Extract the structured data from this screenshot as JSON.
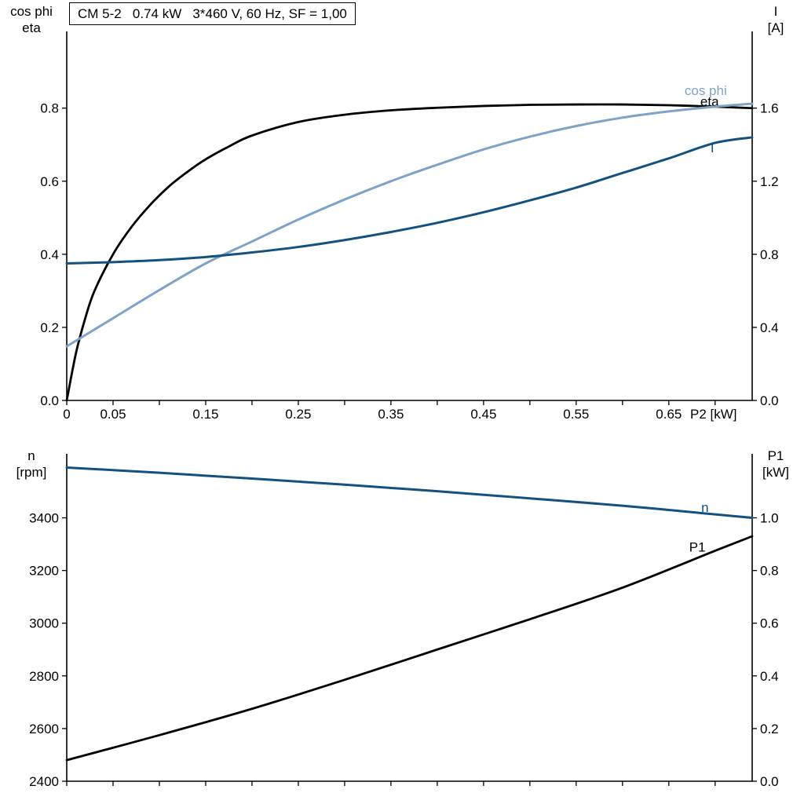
{
  "page": {
    "background": "#ffffff"
  },
  "colors": {
    "black": "#000000",
    "dark_blue": "#14517f",
    "light_blue": "#7fa3c6"
  },
  "chart_data": [
    {
      "type": "line",
      "title": "CM 5-2   0.74 kW   3*460 V, 60 Hz, SF = 1,00",
      "left_axis": {
        "title_lines": [
          "cos phi",
          "eta"
        ],
        "range": [
          0,
          1.01
        ],
        "ticks": [
          {
            "v": 0.0,
            "label": "0.0"
          },
          {
            "v": 0.2,
            "label": "0.2"
          },
          {
            "v": 0.4,
            "label": "0.4"
          },
          {
            "v": 0.6,
            "label": "0.6"
          },
          {
            "v": 0.8,
            "label": "0.8"
          }
        ]
      },
      "right_axis": {
        "title_lines": [
          "I",
          "[A]"
        ],
        "range": [
          0,
          2.02
        ],
        "ticks": [
          {
            "v": 0.0,
            "label": "0.0"
          },
          {
            "v": 0.4,
            "label": "0.4"
          },
          {
            "v": 0.8,
            "label": "0.8"
          },
          {
            "v": 1.2,
            "label": "1.2"
          },
          {
            "v": 1.6,
            "label": "1.6"
          }
        ]
      },
      "x_axis": {
        "label": "P2 [kW]",
        "range": [
          0,
          0.74
        ],
        "ticks": [
          {
            "v": 0.0,
            "label": "0"
          },
          {
            "v": 0.05,
            "label": "0.05"
          },
          {
            "v": 0.1,
            "label": ""
          },
          {
            "v": 0.15,
            "label": "0.15"
          },
          {
            "v": 0.2,
            "label": ""
          },
          {
            "v": 0.25,
            "label": "0.25"
          },
          {
            "v": 0.3,
            "label": ""
          },
          {
            "v": 0.35,
            "label": "0.35"
          },
          {
            "v": 0.4,
            "label": ""
          },
          {
            "v": 0.45,
            "label": "0.45"
          },
          {
            "v": 0.5,
            "label": ""
          },
          {
            "v": 0.55,
            "label": "0.55"
          },
          {
            "v": 0.6,
            "label": ""
          },
          {
            "v": 0.65,
            "label": "0.65"
          },
          {
            "v": 0.7,
            "label": ""
          }
        ]
      },
      "series": [
        {
          "name": "eta",
          "color": "#000000",
          "axis": "left",
          "width": 2.8,
          "label": {
            "text": "eta",
            "x": 0.684,
            "v": 0.817,
            "color": "#000000"
          },
          "points": [
            [
              0,
              0
            ],
            [
              0.01,
              0.13
            ],
            [
              0.02,
              0.225
            ],
            [
              0.03,
              0.3
            ],
            [
              0.05,
              0.4
            ],
            [
              0.07,
              0.475
            ],
            [
              0.09,
              0.535
            ],
            [
              0.11,
              0.585
            ],
            [
              0.13,
              0.625
            ],
            [
              0.15,
              0.66
            ],
            [
              0.175,
              0.695
            ],
            [
              0.2,
              0.725
            ],
            [
              0.25,
              0.762
            ],
            [
              0.3,
              0.782
            ],
            [
              0.35,
              0.794
            ],
            [
              0.4,
              0.801
            ],
            [
              0.45,
              0.806
            ],
            [
              0.5,
              0.809
            ],
            [
              0.55,
              0.81
            ],
            [
              0.6,
              0.81
            ],
            [
              0.65,
              0.808
            ],
            [
              0.7,
              0.804
            ],
            [
              0.74,
              0.8
            ]
          ]
        },
        {
          "name": "cos phi",
          "color": "#7fa3c6",
          "axis": "left",
          "width": 3,
          "label": {
            "text": "cos phi",
            "x": 0.667,
            "v": 0.847,
            "color": "#7fa3c6"
          },
          "points": [
            [
              0,
              0.148
            ],
            [
              0.05,
              0.225
            ],
            [
              0.1,
              0.302
            ],
            [
              0.15,
              0.375
            ],
            [
              0.2,
              0.435
            ],
            [
              0.25,
              0.495
            ],
            [
              0.3,
              0.55
            ],
            [
              0.35,
              0.6
            ],
            [
              0.4,
              0.645
            ],
            [
              0.45,
              0.687
            ],
            [
              0.5,
              0.722
            ],
            [
              0.55,
              0.751
            ],
            [
              0.6,
              0.774
            ],
            [
              0.65,
              0.791
            ],
            [
              0.7,
              0.804
            ],
            [
              0.74,
              0.812
            ]
          ]
        },
        {
          "name": "I",
          "color": "#14517f",
          "axis": "right",
          "width": 3,
          "label": {
            "text": "I",
            "x": 0.695,
            "v": 1.38,
            "color": "#14517f"
          },
          "points": [
            [
              0,
              0.75
            ],
            [
              0.05,
              0.757
            ],
            [
              0.1,
              0.768
            ],
            [
              0.15,
              0.785
            ],
            [
              0.2,
              0.81
            ],
            [
              0.25,
              0.84
            ],
            [
              0.3,
              0.878
            ],
            [
              0.35,
              0.922
            ],
            [
              0.4,
              0.972
            ],
            [
              0.45,
              1.03
            ],
            [
              0.5,
              1.095
            ],
            [
              0.55,
              1.165
            ],
            [
              0.6,
              1.245
            ],
            [
              0.65,
              1.325
            ],
            [
              0.7,
              1.41
            ],
            [
              0.74,
              1.44
            ]
          ]
        }
      ]
    },
    {
      "type": "line",
      "title": "",
      "left_axis": {
        "title_lines": [
          "n",
          "[rpm]"
        ],
        "range": [
          2400,
          3643
        ],
        "ticks": [
          {
            "v": 2400,
            "label": "2400"
          },
          {
            "v": 2600,
            "label": "2600"
          },
          {
            "v": 2800,
            "label": "2800"
          },
          {
            "v": 3000,
            "label": "3000"
          },
          {
            "v": 3200,
            "label": "3200"
          },
          {
            "v": 3400,
            "label": "3400"
          }
        ]
      },
      "right_axis": {
        "title_lines": [
          "P1",
          "[kW]"
        ],
        "range": [
          0,
          1.243
        ],
        "ticks": [
          {
            "v": 0.0,
            "label": "0.0"
          },
          {
            "v": 0.2,
            "label": "0.2"
          },
          {
            "v": 0.4,
            "label": "0.4"
          },
          {
            "v": 0.6,
            "label": "0.6"
          },
          {
            "v": 0.8,
            "label": "0.8"
          },
          {
            "v": 1.0,
            "label": "1.0"
          }
        ]
      },
      "x_axis": {
        "label": "",
        "range": [
          0,
          0.74
        ],
        "ticks": [
          {
            "v": 0.0,
            "label": ""
          },
          {
            "v": 0.05,
            "label": ""
          },
          {
            "v": 0.1,
            "label": ""
          },
          {
            "v": 0.15,
            "label": ""
          },
          {
            "v": 0.2,
            "label": ""
          },
          {
            "v": 0.25,
            "label": ""
          },
          {
            "v": 0.3,
            "label": ""
          },
          {
            "v": 0.35,
            "label": ""
          },
          {
            "v": 0.4,
            "label": ""
          },
          {
            "v": 0.45,
            "label": ""
          },
          {
            "v": 0.5,
            "label": ""
          },
          {
            "v": 0.55,
            "label": ""
          },
          {
            "v": 0.6,
            "label": ""
          },
          {
            "v": 0.65,
            "label": ""
          },
          {
            "v": 0.7,
            "label": ""
          }
        ]
      },
      "series": [
        {
          "name": "n",
          "color": "#14517f",
          "axis": "left",
          "width": 3,
          "label": {
            "text": "n",
            "x": 0.685,
            "v": 3437,
            "color": "#14517f"
          },
          "points": [
            [
              0,
              3591
            ],
            [
              0.1,
              3571
            ],
            [
              0.2,
              3549
            ],
            [
              0.3,
              3526
            ],
            [
              0.4,
              3501
            ],
            [
              0.5,
              3474
            ],
            [
              0.6,
              3446
            ],
            [
              0.7,
              3413
            ],
            [
              0.74,
              3400
            ]
          ]
        },
        {
          "name": "P1",
          "color": "#000000",
          "axis": "right",
          "width": 2.8,
          "label": {
            "text": "P1",
            "x": 0.672,
            "v": 0.887,
            "color": "#000000"
          },
          "points": [
            [
              0,
              0.08
            ],
            [
              0.1,
              0.175
            ],
            [
              0.2,
              0.275
            ],
            [
              0.3,
              0.385
            ],
            [
              0.4,
              0.5
            ],
            [
              0.5,
              0.615
            ],
            [
              0.6,
              0.735
            ],
            [
              0.7,
              0.875
            ],
            [
              0.74,
              0.93
            ]
          ]
        }
      ]
    }
  ]
}
